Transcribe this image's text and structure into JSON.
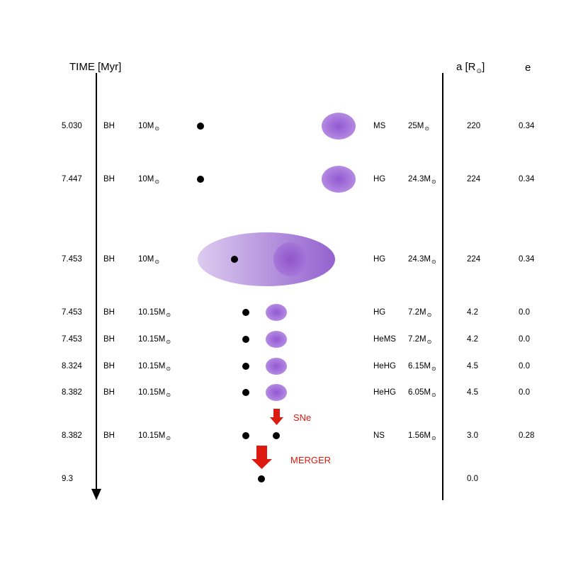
{
  "headers": {
    "time": "TIME [Myr]",
    "a": "a [R",
    "a_close": "]",
    "e": "e",
    "sun_symbol": "⊙"
  },
  "mass_unit": "M",
  "rows": [
    {
      "time": "5.030",
      "type1": "BH",
      "mass1": "10",
      "type2": "MS",
      "mass2": "25",
      "a": "220",
      "e": "0.34"
    },
    {
      "time": "7.447",
      "type1": "BH",
      "mass1": "10",
      "type2": "HG",
      "mass2": "24.3",
      "a": "224",
      "e": "0.34"
    },
    {
      "time": "7.453",
      "type1": "BH",
      "mass1": "10",
      "type2": "HG",
      "mass2": "24.3",
      "a": "224",
      "e": "0.34"
    },
    {
      "time": "7.453",
      "type1": "BH",
      "mass1": "10.15",
      "type2": "HG",
      "mass2": "7.2",
      "a": "4.2",
      "e": "0.0"
    },
    {
      "time": "7.453",
      "type1": "BH",
      "mass1": "10.15",
      "type2": "HeMS",
      "mass2": "7.2",
      "a": "4.2",
      "e": "0.0"
    },
    {
      "time": "8.324",
      "type1": "BH",
      "mass1": "10.15",
      "type2": "HeHG",
      "mass2": "6.15",
      "a": "4.5",
      "e": "0.0"
    },
    {
      "time": "8.382",
      "type1": "BH",
      "mass1": "10.15",
      "type2": "HeHG",
      "mass2": "6.05",
      "a": "4.5",
      "e": "0.0"
    },
    {
      "time": "8.382",
      "type1": "BH",
      "mass1": "10.15",
      "type2": "NS",
      "mass2": "1.56",
      "a": "3.0",
      "e": "0.28"
    },
    {
      "time": "9.3",
      "a": "0.0"
    }
  ],
  "events": {
    "sne": "SNe",
    "merger": "MERGER"
  },
  "colors": {
    "star": "#a070d8",
    "star_core": "#8a55cc",
    "envelope_light": "#d6c2ec",
    "envelope_dark": "#9a6ad0",
    "arrow_red": "#dd1a10",
    "compact": "#000000"
  }
}
